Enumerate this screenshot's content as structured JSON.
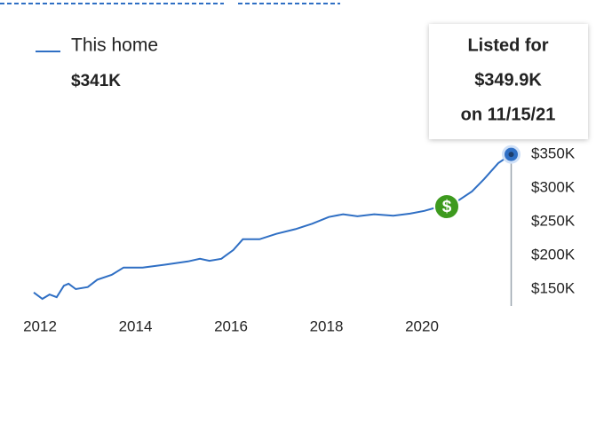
{
  "chart_data": {
    "type": "line",
    "legend_value": "$341K",
    "tooltip": [
      "Listed for",
      "$349.9K",
      "on 11/15/21"
    ],
    "x": [
      2011.87,
      2012.05,
      2012.2,
      2012.35,
      2012.5,
      2012.6,
      2012.75,
      2013.0,
      2013.2,
      2013.5,
      2013.75,
      2014.15,
      2014.6,
      2015.1,
      2015.35,
      2015.55,
      2015.8,
      2016.05,
      2016.25,
      2016.6,
      2016.95,
      2017.35,
      2017.7,
      2018.05,
      2018.35,
      2018.65,
      2019.0,
      2019.4,
      2019.75,
      2020.05,
      2020.3,
      2020.65,
      2021.05,
      2021.3,
      2021.6,
      2021.87
    ],
    "series": [
      {
        "name": "This home",
        "color": "#2f6fc4",
        "values": [
          145,
          135.5,
          142,
          138,
          155,
          158,
          150,
          153,
          164,
          171,
          182,
          182,
          186,
          191,
          195,
          192,
          195,
          208,
          224,
          224,
          232,
          239,
          247,
          257,
          261,
          258,
          261,
          259,
          262,
          266,
          271,
          276,
          295,
          313,
          337,
          349.9
        ]
      }
    ],
    "xlim": [
      2011.8,
      2022
    ],
    "xticks": [
      2012,
      2014,
      2016,
      2018,
      2020
    ],
    "ylim": [
      125,
      375
    ],
    "yticks": [
      {
        "value": 350,
        "label": "$350K"
      },
      {
        "value": 300,
        "label": "$300K"
      },
      {
        "value": 250,
        "label": "$250K"
      },
      {
        "value": 200,
        "label": "$200K"
      },
      {
        "value": 150,
        "label": "$150K"
      }
    ],
    "grid": false
  }
}
